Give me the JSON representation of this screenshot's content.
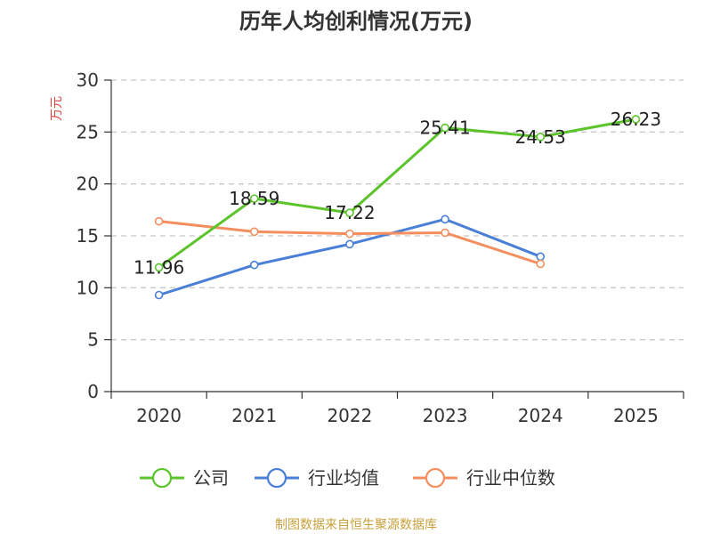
{
  "chart_data": {
    "type": "line",
    "title": "历年人均创利情况(万元)",
    "ylabel": "万元",
    "xlabel": "",
    "categories": [
      "2020",
      "2021",
      "2022",
      "2023",
      "2024",
      "2025"
    ],
    "ylim": [
      0,
      30
    ],
    "yticks": [
      "0",
      "5",
      "10",
      "15",
      "20",
      "25",
      "30"
    ],
    "grid": true,
    "legend_position": "bottom",
    "series": [
      {
        "name": "公司",
        "color": "#5cc42b",
        "values": [
          11.96,
          18.59,
          17.22,
          25.41,
          24.53,
          26.23
        ],
        "labels": [
          "11.96",
          "18.59",
          "17.22",
          "25.41",
          "24.53",
          "26.23"
        ]
      },
      {
        "name": "行业均值",
        "color": "#4a7fd8",
        "values": [
          9.3,
          12.2,
          14.2,
          16.6,
          13.0,
          null
        ]
      },
      {
        "name": "行业中位数",
        "color": "#f58e5e",
        "values": [
          16.4,
          15.4,
          15.2,
          15.3,
          12.3,
          null
        ]
      }
    ],
    "source": "制图数据来自恒生聚源数据库"
  }
}
